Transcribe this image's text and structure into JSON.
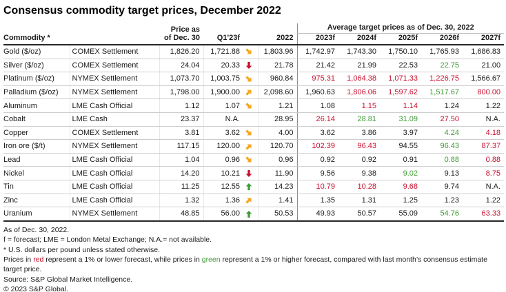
{
  "title": "Consensus commodity target prices, December 2022",
  "colors": {
    "red": "#C8102E",
    "green": "#3F9C35",
    "orange": "#F5A623",
    "divider": "#8c8c8c"
  },
  "chart_data": {
    "type": "table",
    "title": "Consensus commodity target prices, December 2022",
    "group_label": "Average target prices as of Dec. 30, 2022",
    "header": {
      "commodity": "Commodity *",
      "price_line1": "Price as",
      "price_line2": "of Dec. 30",
      "q1": "Q1'23f",
      "y2022": "2022",
      "forecast_years": [
        "2023f",
        "2024f",
        "2025f",
        "2026f",
        "2027f"
      ]
    },
    "rows": [
      {
        "commodity": "Gold ($/oz)",
        "exchange": "COMEX Settlement",
        "price": "1,826.20",
        "q1": "1,721.88",
        "trend": "down-right",
        "y2022": "1,803.96",
        "forecasts": [
          {
            "v": "1,742.97",
            "c": "k"
          },
          {
            "v": "1,743.30",
            "c": "k"
          },
          {
            "v": "1,750.10",
            "c": "k"
          },
          {
            "v": "1,765.93",
            "c": "k"
          },
          {
            "v": "1,686.83",
            "c": "k"
          }
        ]
      },
      {
        "commodity": "Silver ($/oz)",
        "exchange": "COMEX Settlement",
        "price": "24.04",
        "q1": "20.33",
        "trend": "down",
        "y2022": "21.78",
        "forecasts": [
          {
            "v": "21.42",
            "c": "k"
          },
          {
            "v": "21.99",
            "c": "k"
          },
          {
            "v": "22.53",
            "c": "k"
          },
          {
            "v": "22.75",
            "c": "g"
          },
          {
            "v": "21.00",
            "c": "k"
          }
        ]
      },
      {
        "commodity": "Platinum ($/oz)",
        "exchange": "NYMEX Settlement",
        "price": "1,073.70",
        "q1": "1,003.75",
        "trend": "down-right",
        "y2022": "960.84",
        "forecasts": [
          {
            "v": "975.31",
            "c": "r"
          },
          {
            "v": "1,064.38",
            "c": "r"
          },
          {
            "v": "1,071.33",
            "c": "r"
          },
          {
            "v": "1,226.75",
            "c": "r"
          },
          {
            "v": "1,566.67",
            "c": "k"
          }
        ]
      },
      {
        "commodity": "Palladium ($/oz)",
        "exchange": "NYMEX Settlement",
        "price": "1,798.00",
        "q1": "1,900.00",
        "trend": "up-right",
        "y2022": "2,098.60",
        "forecasts": [
          {
            "v": "1,960.63",
            "c": "k"
          },
          {
            "v": "1,806.06",
            "c": "r"
          },
          {
            "v": "1,597.62",
            "c": "r"
          },
          {
            "v": "1,517.67",
            "c": "g"
          },
          {
            "v": "800.00",
            "c": "r"
          }
        ]
      },
      {
        "commodity": "Aluminum",
        "exchange": "LME Cash Official",
        "price": "1.12",
        "q1": "1.07",
        "trend": "down-right",
        "y2022": "1.21",
        "forecasts": [
          {
            "v": "1.08",
            "c": "k"
          },
          {
            "v": "1.15",
            "c": "r"
          },
          {
            "v": "1.14",
            "c": "r"
          },
          {
            "v": "1.24",
            "c": "k"
          },
          {
            "v": "1.22",
            "c": "k"
          }
        ]
      },
      {
        "commodity": "Cobalt",
        "exchange": "LME Cash",
        "price": "23.37",
        "q1": "N.A.",
        "trend": "none",
        "y2022": "28.95",
        "forecasts": [
          {
            "v": "26.14",
            "c": "r"
          },
          {
            "v": "28.81",
            "c": "g"
          },
          {
            "v": "31.09",
            "c": "g"
          },
          {
            "v": "27.50",
            "c": "r"
          },
          {
            "v": "N.A.",
            "c": "k"
          }
        ]
      },
      {
        "commodity": "Copper",
        "exchange": "COMEX Settlement",
        "price": "3.81",
        "q1": "3.62",
        "trend": "down-right",
        "y2022": "4.00",
        "forecasts": [
          {
            "v": "3.62",
            "c": "k"
          },
          {
            "v": "3.86",
            "c": "k"
          },
          {
            "v": "3.97",
            "c": "k"
          },
          {
            "v": "4.24",
            "c": "g"
          },
          {
            "v": "4.18",
            "c": "r"
          }
        ]
      },
      {
        "commodity": "Iron ore ($/t)",
        "exchange": "NYMEX Settlement",
        "price": "117.15",
        "q1": "120.00",
        "trend": "up-right",
        "y2022": "120.70",
        "forecasts": [
          {
            "v": "102.39",
            "c": "r"
          },
          {
            "v": "96.43",
            "c": "r"
          },
          {
            "v": "94.55",
            "c": "k"
          },
          {
            "v": "96.43",
            "c": "g"
          },
          {
            "v": "87.37",
            "c": "r"
          }
        ]
      },
      {
        "commodity": "Lead",
        "exchange": "LME Cash Official",
        "price": "1.04",
        "q1": "0.96",
        "trend": "down-right",
        "y2022": "0.96",
        "forecasts": [
          {
            "v": "0.92",
            "c": "k"
          },
          {
            "v": "0.92",
            "c": "k"
          },
          {
            "v": "0.91",
            "c": "k"
          },
          {
            "v": "0.88",
            "c": "g"
          },
          {
            "v": "0.88",
            "c": "r"
          }
        ]
      },
      {
        "commodity": "Nickel",
        "exchange": "LME Cash Official",
        "price": "14.20",
        "q1": "10.21",
        "trend": "down",
        "y2022": "11.90",
        "forecasts": [
          {
            "v": "9.56",
            "c": "k"
          },
          {
            "v": "9.38",
            "c": "k"
          },
          {
            "v": "9.02",
            "c": "g"
          },
          {
            "v": "9.13",
            "c": "k"
          },
          {
            "v": "8.75",
            "c": "r"
          }
        ]
      },
      {
        "commodity": "Tin",
        "exchange": "LME Cash Official",
        "price": "11.25",
        "q1": "12.55",
        "trend": "up",
        "y2022": "14.23",
        "forecasts": [
          {
            "v": "10.79",
            "c": "r"
          },
          {
            "v": "10.28",
            "c": "r"
          },
          {
            "v": "9.68",
            "c": "r"
          },
          {
            "v": "9.74",
            "c": "k"
          },
          {
            "v": "N.A.",
            "c": "k"
          }
        ]
      },
      {
        "commodity": "Zinc",
        "exchange": "LME Cash Official",
        "price": "1.32",
        "q1": "1.36",
        "trend": "up-right",
        "y2022": "1.41",
        "forecasts": [
          {
            "v": "1.35",
            "c": "k"
          },
          {
            "v": "1.31",
            "c": "k"
          },
          {
            "v": "1.25",
            "c": "k"
          },
          {
            "v": "1.23",
            "c": "k"
          },
          {
            "v": "1.22",
            "c": "k"
          }
        ]
      },
      {
        "commodity": "Uranium",
        "exchange": "NYMEX Settlement",
        "price": "48.85",
        "q1": "56.00",
        "trend": "up",
        "y2022": "50.53",
        "forecasts": [
          {
            "v": "49.93",
            "c": "k"
          },
          {
            "v": "50.57",
            "c": "k"
          },
          {
            "v": "55.09",
            "c": "k"
          },
          {
            "v": "54.76",
            "c": "g"
          },
          {
            "v": "63.33",
            "c": "r"
          }
        ]
      }
    ]
  },
  "footnotes": {
    "line1": "As of Dec. 30, 2022.",
    "line2": "f = forecast; LME = London Metal Exchange; N.A.= not available.",
    "line3": "* U.S. dollars per pound unless stated otherwise.",
    "line4": {
      "a": "Prices in ",
      "red_word": "red",
      "b": " represent a 1% or lower forecast, while prices in ",
      "green_word": "green",
      "c": " represent a 1% or higher forecast, compared with last month’s consensus estimate target price."
    },
    "source": "Source: S&P Global Market Intelligence.",
    "copyright": "© 2023 S&P Global."
  }
}
